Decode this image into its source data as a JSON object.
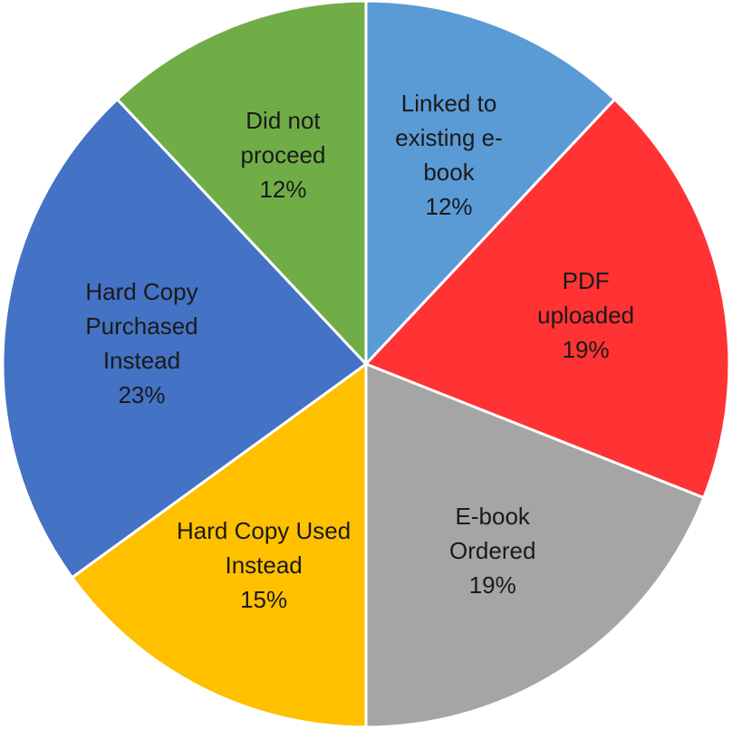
{
  "chart_data": {
    "type": "pie",
    "categories": [
      "Linked to existing e-book",
      "PDF uploaded",
      "E-book Ordered",
      "Hard Copy Used Instead",
      "Hard Copy Purchased Instead",
      "Did not proceed"
    ],
    "values": [
      12,
      19,
      19,
      15,
      23,
      12
    ],
    "value_labels": [
      "12%",
      "19%",
      "19%",
      "15%",
      "23%",
      "12%"
    ],
    "colors": [
      "#5b9bd5",
      "#ff3333",
      "#a5a5a5",
      "#ffc000",
      "#4472c4",
      "#70ad47"
    ]
  }
}
